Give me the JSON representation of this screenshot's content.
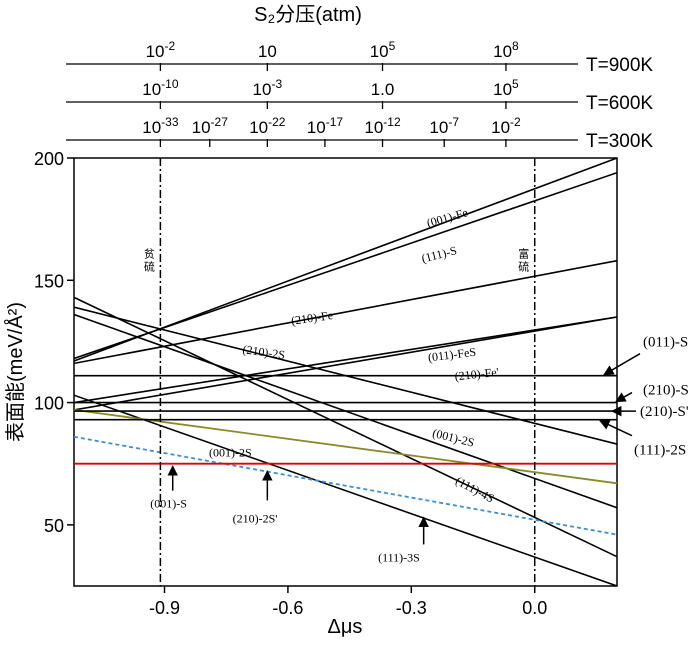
{
  "chart_data": {
    "type": "line",
    "title": "S₂分压(atm)",
    "xlabel": "Δμs",
    "ylabel": "表面能(meV/Å²)",
    "xlim": [
      -1.12,
      0.2
    ],
    "ylim": [
      25,
      200
    ],
    "xticks": [
      -0.9,
      -0.6,
      -0.3,
      0.0
    ],
    "xtick_labels": [
      "-0.9",
      "-0.6",
      "-0.3",
      "0.0"
    ],
    "yticks": [
      50,
      100,
      150,
      200
    ],
    "ytick_labels": [
      "50",
      "100",
      "150",
      "200"
    ],
    "vertical_lines": [
      {
        "x": -0.91,
        "label": "贫硫"
      },
      {
        "x": 0.0,
        "label": "富硫"
      }
    ],
    "pressure_scales": [
      {
        "temperature": "T=900K",
        "ticks": [
          {
            "x": -0.91,
            "mantissa": "10",
            "exp": "-2"
          },
          {
            "x": -0.65,
            "mantissa": "10",
            "exp": ""
          },
          {
            "x": -0.37,
            "mantissa": "10",
            "exp": "5"
          },
          {
            "x": -0.07,
            "mantissa": "10",
            "exp": "8"
          }
        ]
      },
      {
        "temperature": "T=600K",
        "ticks": [
          {
            "x": -0.91,
            "mantissa": "10",
            "exp": "-10"
          },
          {
            "x": -0.65,
            "mantissa": "10",
            "exp": "-3"
          },
          {
            "x": -0.37,
            "mantissa": "1.0",
            "exp": ""
          },
          {
            "x": -0.07,
            "mantissa": "10",
            "exp": "5"
          }
        ]
      },
      {
        "temperature": "T=300K",
        "ticks": [
          {
            "x": -0.91,
            "mantissa": "10",
            "exp": "-33"
          },
          {
            "x": -0.79,
            "mantissa": "10",
            "exp": "-27"
          },
          {
            "x": -0.65,
            "mantissa": "10",
            "exp": "-22"
          },
          {
            "x": -0.51,
            "mantissa": "10",
            "exp": "-17"
          },
          {
            "x": -0.37,
            "mantissa": "10",
            "exp": "-12"
          },
          {
            "x": -0.22,
            "mantissa": "10",
            "exp": "-7"
          },
          {
            "x": -0.07,
            "mantissa": "10",
            "exp": "-2"
          }
        ]
      }
    ],
    "series": [
      {
        "name": "(001)-Fe",
        "color": "#000000",
        "dash": "solid",
        "x": [
          -1.12,
          0.2
        ],
        "y": [
          117,
          200
        ]
      },
      {
        "name": "(111)-S",
        "color": "#000000",
        "dash": "solid",
        "x": [
          -1.12,
          0.2
        ],
        "y": [
          118,
          194
        ]
      },
      {
        "name": "(210)-Fe",
        "color": "#000000",
        "dash": "solid",
        "x": [
          -1.12,
          0.2
        ],
        "y": [
          116,
          158
        ]
      },
      {
        "name": "(011)-FeS",
        "color": "#000000",
        "dash": "solid",
        "x": [
          -1.12,
          0.2
        ],
        "y": [
          97,
          135
        ]
      },
      {
        "name": "(210)-Fe'",
        "color": "#000000",
        "dash": "solid",
        "x": [
          -1.12,
          0.2
        ],
        "y": [
          100,
          135
        ]
      },
      {
        "name": "(210)-2S",
        "color": "#000000",
        "dash": "solid",
        "x": [
          -1.12,
          0.2
        ],
        "y": [
          139,
          83
        ]
      },
      {
        "name": "(001)-2S",
        "color": "#000000",
        "dash": "solid",
        "x": [
          -1.12,
          0.2
        ],
        "y": [
          136,
          57
        ]
      },
      {
        "name": "(111)-4S",
        "color": "#000000",
        "dash": "solid",
        "x": [
          -1.12,
          0.2
        ],
        "y": [
          143,
          37
        ]
      },
      {
        "name": "(111)-3S",
        "color": "#000000",
        "dash": "solid",
        "x": [
          -1.12,
          0.2
        ],
        "y": [
          103,
          25
        ]
      },
      {
        "name": "(001)-S",
        "color": "#8a8a2a",
        "dash": "solid",
        "x": [
          -1.12,
          0.2
        ],
        "y": [
          97,
          67
        ]
      },
      {
        "name": "(210)-2S'",
        "color": "#3a8fd8",
        "dash": "dashed",
        "x": [
          -1.12,
          0.2
        ],
        "y": [
          86,
          46
        ]
      },
      {
        "name": "",
        "color": "#e00000",
        "dash": "solid",
        "x": [
          -1.12,
          0.2
        ],
        "y": [
          75,
          75
        ]
      },
      {
        "name": "(011)-S",
        "color": "#000000",
        "dash": "solid",
        "x": [
          -1.12,
          0.2
        ],
        "y": [
          111,
          111
        ]
      },
      {
        "name": "(210)-S",
        "color": "#000000",
        "dash": "solid",
        "x": [
          -1.12,
          0.2
        ],
        "y": [
          100,
          100
        ]
      },
      {
        "name": "(210)-S'",
        "color": "#000000",
        "dash": "solid",
        "x": [
          -1.12,
          0.2
        ],
        "y": [
          96.5,
          96.5
        ]
      },
      {
        "name": "(111)-2S",
        "color": "#000000",
        "dash": "solid",
        "x": [
          -1.12,
          0.2
        ],
        "y": [
          93,
          93
        ]
      }
    ],
    "line_labels": [
      {
        "text": "(001)-Fe",
        "x": -0.21,
        "y": 174,
        "rotate": -16
      },
      {
        "text": "(111)-S",
        "x": -0.23,
        "y": 159,
        "rotate": -14
      },
      {
        "text": "(210)-Fe",
        "x": -0.54,
        "y": 133,
        "rotate": -8
      },
      {
        "text": "(210)-2S",
        "x": -0.66,
        "y": 119,
        "rotate": 8
      },
      {
        "text": "(011)-FeS",
        "x": -0.2,
        "y": 118,
        "rotate": -7
      },
      {
        "text": "(210)-Fe'",
        "x": -0.14,
        "y": 110,
        "rotate": -6
      },
      {
        "text": "(001)-2S",
        "x": -0.2,
        "y": 84,
        "rotate": 14
      },
      {
        "text": "(111)-4S",
        "x": -0.15,
        "y": 63,
        "rotate": 28
      },
      {
        "text": "(001)-2S",
        "x": -0.74,
        "y": 78,
        "rotate": 0
      }
    ],
    "arrow_annotations": [
      {
        "text": "(001)-S",
        "tip_x": -0.88,
        "tip_y": 74,
        "base_x": -0.88,
        "base_y": 64,
        "text_x": -0.89,
        "text_y": 57
      },
      {
        "text": "(210)-2S'",
        "tip_x": -0.65,
        "tip_y": 72,
        "base_x": -0.65,
        "base_y": 60,
        "text_x": -0.68,
        "text_y": 51
      },
      {
        "text": "(111)-3S",
        "tip_x": -0.27,
        "tip_y": 53,
        "base_x": -0.27,
        "base_y": 42,
        "text_x": -0.33,
        "text_y": 35
      }
    ],
    "right_annotations": [
      {
        "text": "(011)-S",
        "tip_y": 111,
        "dir": "up"
      },
      {
        "text": "(210)-S",
        "tip_y": 100,
        "dir": "up"
      },
      {
        "text": "(210)-S'",
        "tip_y": 96.5,
        "dir": "left"
      },
      {
        "text": "(111)-2S",
        "tip_y": 93,
        "dir": "down"
      }
    ]
  }
}
